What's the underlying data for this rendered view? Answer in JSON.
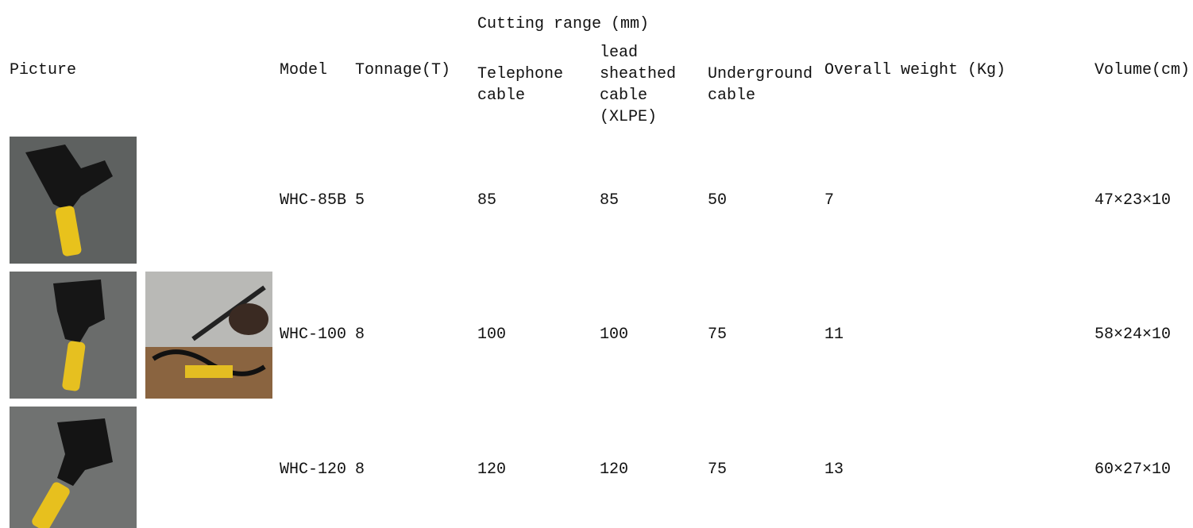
{
  "table": {
    "group_header": "Cutting range (mm)",
    "columns": [
      "Picture",
      "Model",
      "Tonnage(T)",
      "Telephone cable",
      "lead sheathed cable (XLPE)",
      "Underground cable",
      "Overall weight (Kg)",
      "Volume(cm)"
    ],
    "rows": [
      [
        "WHC-85B",
        5,
        85,
        85,
        50,
        7,
        "47×23×10"
      ],
      [
        "WHC-100",
        8,
        100,
        100,
        75,
        11,
        "58×24×10"
      ],
      [
        "WHC-120",
        8,
        120,
        120,
        75,
        13,
        "60×27×10"
      ]
    ]
  }
}
